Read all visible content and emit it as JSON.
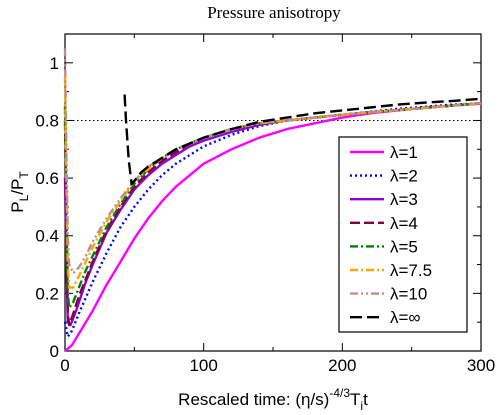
{
  "chart_data": {
    "type": "line",
    "title": "Pressure anisotropy",
    "xlabel_main": "Rescaled time: (η/s)",
    "xlabel_sup": "-4/3",
    "xlabel_T": "T",
    "xlabel_sub": "i",
    "xlabel_t": "t",
    "ylabel_P1": "P",
    "ylabel_L": "L",
    "ylabel_slash": "/P",
    "ylabel_T": "T",
    "xlim": [
      0,
      300
    ],
    "ylim": [
      0,
      1.1
    ],
    "x_ticks": [
      "0",
      "100",
      "200",
      "300"
    ],
    "x_tick_values": [
      0,
      100,
      200,
      300
    ],
    "y_ticks": [
      "0",
      "0.2",
      "0.4",
      "0.6",
      "0.8",
      "1"
    ],
    "y_tick_values": [
      0,
      0.2,
      0.4,
      0.6,
      0.8,
      1.0
    ],
    "reference_line_y": 0.8,
    "legend_position": "center-right",
    "series": [
      {
        "name": "λ=1",
        "color": "#ff00ff",
        "dash": "solid",
        "x": [
          0,
          5,
          10,
          20,
          30,
          40,
          50,
          60,
          70,
          80,
          90,
          100,
          120,
          140,
          160,
          180,
          200,
          220,
          240,
          260,
          280,
          300
        ],
        "y": [
          0,
          0.02,
          0.06,
          0.14,
          0.23,
          0.31,
          0.39,
          0.46,
          0.52,
          0.57,
          0.61,
          0.65,
          0.7,
          0.74,
          0.77,
          0.79,
          0.81,
          0.825,
          0.835,
          0.845,
          0.852,
          0.858
        ]
      },
      {
        "name": "λ=2",
        "color": "#0000ff",
        "dash": "dot",
        "x": [
          0,
          2,
          5,
          10,
          20,
          30,
          40,
          50,
          60,
          70,
          80,
          90,
          100,
          120,
          140,
          160,
          180,
          200,
          240,
          280,
          300
        ],
        "y": [
          0.1,
          0.05,
          0.07,
          0.13,
          0.24,
          0.34,
          0.43,
          0.5,
          0.56,
          0.61,
          0.65,
          0.68,
          0.71,
          0.75,
          0.78,
          0.8,
          0.81,
          0.82,
          0.84,
          0.855,
          0.86
        ]
      },
      {
        "name": "λ=3",
        "color": "#9400d3",
        "dash": "solid",
        "x": [
          0,
          1,
          2,
          4,
          8,
          15,
          20,
          30,
          40,
          50,
          60,
          70,
          80,
          90,
          100,
          120,
          140,
          160,
          200,
          250,
          300
        ],
        "y": [
          0.6,
          0.3,
          0.1,
          0.09,
          0.14,
          0.24,
          0.3,
          0.41,
          0.49,
          0.56,
          0.61,
          0.65,
          0.68,
          0.71,
          0.73,
          0.76,
          0.785,
          0.8,
          0.82,
          0.84,
          0.86
        ]
      },
      {
        "name": "λ=4",
        "color": "#800040",
        "dash": "longdash",
        "x": [
          0,
          1,
          2,
          3,
          6,
          10,
          15,
          20,
          30,
          40,
          50,
          60,
          70,
          80,
          90,
          100,
          120,
          140,
          160,
          200,
          250,
          300
        ],
        "y": [
          0.8,
          0.4,
          0.13,
          0.09,
          0.13,
          0.19,
          0.25,
          0.31,
          0.42,
          0.5,
          0.57,
          0.62,
          0.66,
          0.69,
          0.72,
          0.74,
          0.77,
          0.79,
          0.8,
          0.82,
          0.84,
          0.86
        ]
      },
      {
        "name": "λ=5",
        "color": "#008000",
        "dash": "dashdot",
        "x": [
          0,
          1,
          2,
          3,
          6,
          10,
          15,
          20,
          30,
          40,
          50,
          60,
          70,
          80,
          90,
          100,
          120,
          140,
          160,
          200,
          250,
          300
        ],
        "y": [
          0.85,
          0.5,
          0.2,
          0.15,
          0.17,
          0.22,
          0.28,
          0.33,
          0.43,
          0.51,
          0.58,
          0.63,
          0.67,
          0.7,
          0.72,
          0.74,
          0.77,
          0.79,
          0.8,
          0.82,
          0.84,
          0.86
        ]
      },
      {
        "name": "λ=7.5",
        "color": "#ffa500",
        "dash": "dashdot",
        "x": [
          0,
          1,
          2,
          3,
          6,
          10,
          15,
          20,
          30,
          40,
          50,
          60,
          70,
          80,
          90,
          100,
          120,
          140,
          160,
          200,
          250,
          300
        ],
        "y": [
          0.95,
          0.6,
          0.3,
          0.22,
          0.22,
          0.26,
          0.31,
          0.36,
          0.45,
          0.52,
          0.59,
          0.63,
          0.67,
          0.7,
          0.72,
          0.74,
          0.77,
          0.79,
          0.8,
          0.82,
          0.84,
          0.86
        ]
      },
      {
        "name": "λ=10",
        "color": "#bc8f8f",
        "dash": "dashdotdot",
        "x": [
          0,
          1,
          2,
          3,
          6,
          10,
          15,
          20,
          30,
          40,
          50,
          60,
          70,
          80,
          90,
          100,
          120,
          140,
          160,
          200,
          250,
          300
        ],
        "y": [
          1.05,
          0.7,
          0.4,
          0.3,
          0.27,
          0.29,
          0.33,
          0.38,
          0.46,
          0.53,
          0.59,
          0.64,
          0.67,
          0.7,
          0.72,
          0.74,
          0.77,
          0.79,
          0.8,
          0.82,
          0.84,
          0.86
        ]
      },
      {
        "name": "λ=∞",
        "color": "#000000",
        "dash": "dash",
        "x": [
          43,
          44,
          46,
          48,
          50,
          55,
          60,
          70,
          80,
          90,
          100,
          120,
          140,
          160,
          180,
          200,
          220,
          240,
          260,
          280,
          300
        ],
        "y": [
          0.89,
          0.8,
          0.66,
          0.58,
          0.59,
          0.62,
          0.64,
          0.67,
          0.7,
          0.72,
          0.74,
          0.77,
          0.795,
          0.81,
          0.825,
          0.835,
          0.845,
          0.855,
          0.862,
          0.868,
          0.875
        ]
      }
    ]
  }
}
